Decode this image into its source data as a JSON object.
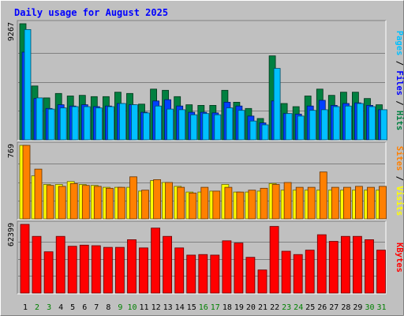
{
  "chart_data": [
    {
      "type": "bar",
      "title": "Daily usage for August 2025",
      "max_label": "9267",
      "categories": [
        "1",
        "2",
        "3",
        "4",
        "5",
        "6",
        "7",
        "8",
        "9",
        "10",
        "11",
        "12",
        "13",
        "14",
        "15",
        "16",
        "17",
        "18",
        "19",
        "20",
        "21",
        "22",
        "23",
        "24",
        "25",
        "26",
        "27",
        "28",
        "29",
        "30",
        "31"
      ],
      "weekend_days": [
        "2",
        "3",
        "9",
        "10",
        "16",
        "17",
        "23",
        "24",
        "30",
        "31"
      ],
      "series": [
        {
          "name": "Hits",
          "color": "#008040",
          "values": [
            9267,
            4300,
            3350,
            3700,
            3500,
            3550,
            3450,
            3450,
            3800,
            3700,
            2850,
            4050,
            3950,
            3450,
            2800,
            2750,
            2750,
            3950,
            3000,
            2500,
            1700,
            6700,
            2900,
            2650,
            3500,
            4050,
            3550,
            3800,
            3800,
            3300,
            2800
          ]
        },
        {
          "name": "Files",
          "color": "#0040ff",
          "values": [
            7000,
            3300,
            2500,
            2800,
            2700,
            2800,
            2650,
            2700,
            2900,
            2800,
            2200,
            3100,
            3200,
            2700,
            2200,
            2200,
            2150,
            3000,
            2700,
            1900,
            1350,
            3100,
            2100,
            2050,
            2700,
            3150,
            2750,
            2900,
            2950,
            2750,
            2400
          ]
        },
        {
          "name": "Pages",
          "color": "#00c0ff",
          "values": [
            8800,
            3350,
            2450,
            2550,
            2650,
            2650,
            2550,
            2650,
            2900,
            2800,
            2150,
            2700,
            2450,
            2400,
            2000,
            2100,
            2000,
            2550,
            2350,
            1500,
            1200,
            5700,
            2100,
            1900,
            2350,
            2400,
            2650,
            2700,
            2900,
            2650,
            2400
          ]
        }
      ]
    },
    {
      "type": "bar",
      "max_label": "769",
      "categories": [
        "1",
        "2",
        "3",
        "4",
        "5",
        "6",
        "7",
        "8",
        "9",
        "10",
        "11",
        "12",
        "13",
        "14",
        "15",
        "16",
        "17",
        "18",
        "19",
        "20",
        "21",
        "22",
        "23",
        "24",
        "25",
        "26",
        "27",
        "28",
        "29",
        "30",
        "31"
      ],
      "series": [
        {
          "name": "Visits",
          "color": "#ffff00",
          "values": [
            769,
            450,
            360,
            360,
            390,
            360,
            350,
            330,
            330,
            330,
            290,
            400,
            380,
            340,
            280,
            280,
            290,
            360,
            280,
            280,
            290,
            370,
            300,
            300,
            300,
            300,
            300,
            300,
            300,
            300,
            300
          ]
        },
        {
          "name": "Sites",
          "color": "#ff8000",
          "values": [
            769,
            520,
            350,
            340,
            370,
            350,
            340,
            320,
            330,
            440,
            300,
            410,
            380,
            330,
            270,
            330,
            290,
            330,
            280,
            300,
            320,
            360,
            380,
            330,
            330,
            490,
            330,
            330,
            340,
            330,
            340
          ]
        }
      ]
    },
    {
      "type": "bar",
      "max_label": "62399",
      "categories": [
        "1",
        "2",
        "3",
        "4",
        "5",
        "6",
        "7",
        "8",
        "9",
        "10",
        "11",
        "12",
        "13",
        "14",
        "15",
        "16",
        "17",
        "18",
        "19",
        "20",
        "21",
        "22",
        "23",
        "24",
        "25",
        "26",
        "27",
        "28",
        "29",
        "30",
        "31"
      ],
      "series": [
        {
          "name": "KBytes",
          "color": "#ff0000",
          "values": [
            62399,
            51500,
            37500,
            51500,
            42500,
            43500,
            43000,
            41500,
            41500,
            48500,
            41000,
            59000,
            51500,
            41000,
            34500,
            35000,
            34500,
            47500,
            45500,
            32500,
            21000,
            60500,
            38000,
            35000,
            39000,
            53000,
            47000,
            51500,
            51500,
            48500,
            39000
          ]
        }
      ]
    }
  ]
}
